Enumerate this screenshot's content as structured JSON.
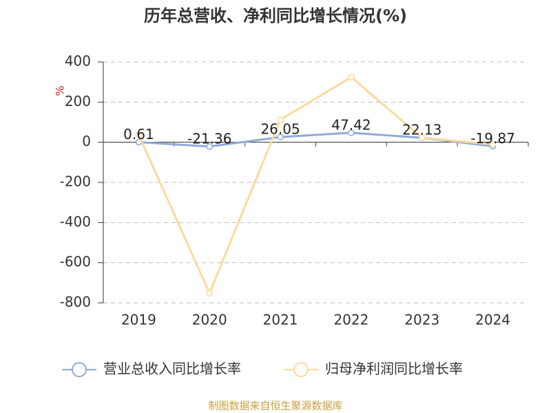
{
  "chart_data": {
    "type": "line",
    "title": "历年总营收、净利同比增长情况(%)",
    "y_label": "%",
    "source": "制图数据来自恒生聚源数据库",
    "categories": [
      "2019",
      "2020",
      "2021",
      "2022",
      "2023",
      "2024"
    ],
    "series": [
      {
        "name": "营业总收入同比增长率",
        "color": "#8eaadb",
        "values": [
          0.61,
          -21.36,
          26.05,
          47.42,
          22.13,
          -19.87
        ],
        "data_labels": true
      },
      {
        "name": "归母净利润同比增长率",
        "color": "#ffd99a",
        "values": [
          37,
          -752,
          112,
          324,
          23,
          -11
        ],
        "data_labels": false
      }
    ],
    "ylim": [
      -800,
      400
    ],
    "yticks": [
      -800,
      -600,
      -400,
      -200,
      0,
      200,
      400
    ],
    "grid": true
  }
}
